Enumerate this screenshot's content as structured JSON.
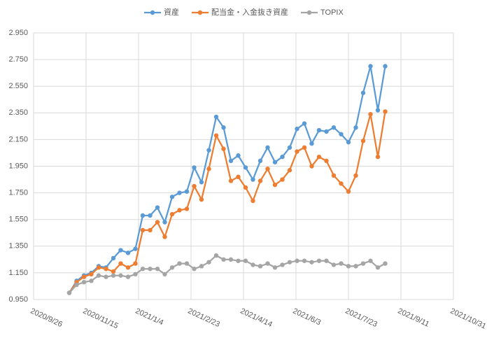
{
  "chart_data": {
    "type": "line",
    "x": [
      "2020/10/30",
      "2020/11/6",
      "2020/11/13",
      "2020/11/20",
      "2020/11/27",
      "2020/12/4",
      "2020/12/11",
      "2020/12/18",
      "2020/12/25",
      "2021/1/1",
      "2021/1/8",
      "2021/1/15",
      "2021/1/22",
      "2021/1/29",
      "2021/2/5",
      "2021/2/12",
      "2021/2/19",
      "2021/2/26",
      "2021/3/5",
      "2021/3/12",
      "2021/3/19",
      "2021/3/26",
      "2021/4/2",
      "2021/4/9",
      "2021/4/16",
      "2021/4/23",
      "2021/4/30",
      "2021/5/7",
      "2021/5/14",
      "2021/5/21",
      "2021/5/28",
      "2021/6/4",
      "2021/6/11",
      "2021/6/18",
      "2021/6/25",
      "2021/7/2",
      "2021/7/9",
      "2021/7/16",
      "2021/7/23",
      "2021/7/30",
      "2021/8/6",
      "2021/8/13",
      "2021/8/20",
      "2021/8/27"
    ],
    "series": [
      {
        "name": "資産",
        "color": "#5b9bd5",
        "values": [
          1.0,
          1.09,
          1.13,
          1.15,
          1.2,
          1.19,
          1.26,
          1.32,
          1.3,
          1.33,
          1.58,
          1.58,
          1.64,
          1.53,
          1.72,
          1.75,
          1.76,
          1.94,
          1.83,
          2.07,
          2.32,
          2.24,
          1.99,
          2.03,
          1.94,
          1.85,
          1.99,
          2.09,
          1.98,
          2.02,
          2.09,
          2.23,
          2.27,
          2.12,
          2.22,
          2.21,
          2.24,
          2.19,
          2.13,
          2.24,
          2.5,
          2.7,
          2.37,
          2.7
        ]
      },
      {
        "name": "配当金・入金抜き資産",
        "color": "#ed7d31",
        "values": [
          1.0,
          1.08,
          1.12,
          1.14,
          1.19,
          1.18,
          1.16,
          1.22,
          1.19,
          1.22,
          1.47,
          1.47,
          1.53,
          1.42,
          1.59,
          1.62,
          1.63,
          1.8,
          1.7,
          1.93,
          2.18,
          2.08,
          1.84,
          1.87,
          1.79,
          1.69,
          1.84,
          1.93,
          1.81,
          1.85,
          1.92,
          2.06,
          2.09,
          1.95,
          2.02,
          1.99,
          1.88,
          1.82,
          1.76,
          1.88,
          2.14,
          2.34,
          2.02,
          2.36
        ]
      },
      {
        "name": "TOPIX",
        "color": "#a5a5a5",
        "values": [
          1.0,
          1.06,
          1.08,
          1.09,
          1.13,
          1.12,
          1.13,
          1.13,
          1.12,
          1.14,
          1.18,
          1.18,
          1.18,
          1.14,
          1.19,
          1.22,
          1.22,
          1.18,
          1.2,
          1.23,
          1.28,
          1.25,
          1.25,
          1.24,
          1.24,
          1.21,
          1.2,
          1.22,
          1.19,
          1.21,
          1.23,
          1.24,
          1.24,
          1.23,
          1.24,
          1.24,
          1.21,
          1.22,
          1.2,
          1.2,
          1.22,
          1.24,
          1.19,
          1.22
        ]
      }
    ],
    "xlim": [
      "2020/9/26",
      "2021/10/31"
    ],
    "xticks": [
      "2020/9/26",
      "2020/11/15",
      "2021/1/4",
      "2021/2/23",
      "2021/4/14",
      "2021/6/3",
      "2021/7/23",
      "2021/9/11",
      "2021/10/31"
    ],
    "ylim": [
      0.95,
      2.95
    ],
    "yticks": [
      {
        "value": 0.95,
        "label": "0.950"
      },
      {
        "value": 1.15,
        "label": "1.150"
      },
      {
        "value": 1.35,
        "label": "1.350"
      },
      {
        "value": 1.55,
        "label": "1.550"
      },
      {
        "value": 1.75,
        "label": "1.750"
      },
      {
        "value": 1.95,
        "label": "1.950"
      },
      {
        "value": 2.15,
        "label": "2.150"
      },
      {
        "value": 2.35,
        "label": "2.350"
      },
      {
        "value": 2.55,
        "label": "2.550"
      },
      {
        "value": 2.75,
        "label": "2.750"
      },
      {
        "value": 2.95,
        "label": "2.950"
      }
    ],
    "grid": true,
    "legend": "top"
  }
}
